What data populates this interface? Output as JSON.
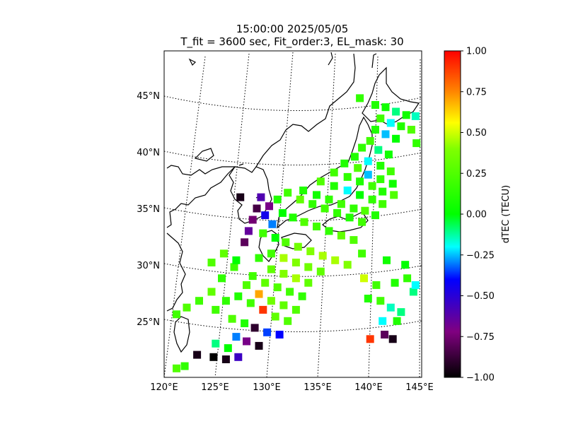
{
  "chart_data": {
    "type": "heatmap",
    "title": "15:00:00 2025/05/05",
    "subtitle": "T_fit = 3600 sec, Fit_order:3, EL_mask: 30",
    "colorbar": {
      "label": "dTEC (TECU)",
      "vmin": -1.0,
      "vmax": 1.0,
      "ticks": [
        "1.00",
        "0.75",
        "0.50",
        "0.25",
        "0.00",
        "−0.25",
        "−0.50",
        "−0.75",
        "−1.00"
      ],
      "colormap": [
        "#000000",
        "#800080",
        "#0000ff",
        "#00ffff",
        "#00ff00",
        "#ffff00",
        "#ff0000"
      ]
    },
    "lon_ticks": [
      "120°E",
      "125°E",
      "130°E",
      "135°E",
      "140°E",
      "145°E"
    ],
    "lat_ticks": [
      "45°N",
      "40°N",
      "35°N",
      "30°N",
      "25°N"
    ],
    "lon_range": [
      120,
      145
    ],
    "lat_range": [
      20,
      49
    ],
    "points": [
      [
        139.0,
        44.8,
        0.15
      ],
      [
        140.5,
        44.2,
        0.1
      ],
      [
        141.5,
        44.0,
        0.05
      ],
      [
        142.5,
        43.6,
        -0.1
      ],
      [
        143.5,
        43.3,
        0.05
      ],
      [
        144.4,
        43.2,
        -0.15
      ],
      [
        141.0,
        43.0,
        0.2
      ],
      [
        142.0,
        42.6,
        -0.2
      ],
      [
        143.0,
        42.3,
        0.1
      ],
      [
        144.0,
        42.0,
        0.25
      ],
      [
        140.5,
        42.0,
        0.1
      ],
      [
        141.5,
        41.6,
        -0.25
      ],
      [
        142.5,
        41.2,
        0.0
      ],
      [
        144.5,
        40.8,
        0.15
      ],
      [
        140.0,
        41.0,
        0.2
      ],
      [
        139.2,
        40.4,
        0.15
      ],
      [
        140.8,
        40.2,
        -0.1
      ],
      [
        141.8,
        39.8,
        0.05
      ],
      [
        138.5,
        39.6,
        0.1
      ],
      [
        139.8,
        39.2,
        -0.2
      ],
      [
        141.0,
        38.8,
        0.1
      ],
      [
        142.0,
        38.3,
        0.2
      ],
      [
        137.5,
        39.0,
        0.1
      ],
      [
        138.8,
        38.6,
        0.25
      ],
      [
        139.8,
        38.0,
        -0.25
      ],
      [
        141.0,
        37.6,
        0.15
      ],
      [
        142.2,
        37.2,
        0.05
      ],
      [
        136.5,
        38.2,
        0.2
      ],
      [
        137.8,
        37.8,
        0.15
      ],
      [
        139.0,
        37.4,
        0.1
      ],
      [
        140.2,
        37.0,
        0.2
      ],
      [
        141.2,
        36.5,
        0.1
      ],
      [
        142.3,
        36.2,
        0.25
      ],
      [
        135.2,
        37.4,
        0.25
      ],
      [
        136.5,
        37.0,
        0.1
      ],
      [
        137.8,
        36.6,
        -0.2
      ],
      [
        139.0,
        36.2,
        0.0
      ],
      [
        140.2,
        35.8,
        0.15
      ],
      [
        141.2,
        35.4,
        0.2
      ],
      [
        133.5,
        36.6,
        0.1
      ],
      [
        134.8,
        36.2,
        0.05
      ],
      [
        136.0,
        35.8,
        0.15
      ],
      [
        137.2,
        35.4,
        0.2
      ],
      [
        138.4,
        35.0,
        0.15
      ],
      [
        139.5,
        34.8,
        0.25
      ],
      [
        140.5,
        34.4,
        0.1
      ],
      [
        132.0,
        36.4,
        0.2
      ],
      [
        133.2,
        35.8,
        0.3
      ],
      [
        134.4,
        35.4,
        0.15
      ],
      [
        135.6,
        35.0,
        0.2
      ],
      [
        136.8,
        34.6,
        0.15
      ],
      [
        138.0,
        34.2,
        0.1
      ],
      [
        139.2,
        33.8,
        0.2
      ],
      [
        131.0,
        35.8,
        0.1
      ],
      [
        130.2,
        35.2,
        -0.7
      ],
      [
        131.5,
        34.6,
        0.0
      ],
      [
        132.5,
        34.2,
        0.1
      ],
      [
        133.6,
        33.8,
        0.25
      ],
      [
        134.8,
        33.4,
        0.2
      ],
      [
        136.0,
        33.0,
        0.15
      ],
      [
        137.2,
        32.6,
        0.3
      ],
      [
        138.4,
        32.2,
        0.25
      ],
      [
        129.4,
        36.0,
        -0.6
      ],
      [
        129.0,
        35.0,
        -0.85
      ],
      [
        128.6,
        34.0,
        -0.75
      ],
      [
        128.2,
        33.0,
        -0.65
      ],
      [
        127.8,
        32.0,
        -0.8
      ],
      [
        127.4,
        36.0,
        -0.95
      ],
      [
        129.8,
        34.4,
        -0.45
      ],
      [
        130.5,
        33.6,
        -0.3
      ],
      [
        129.6,
        32.8,
        0.2
      ],
      [
        130.8,
        32.4,
        0.0
      ],
      [
        131.8,
        32.0,
        0.25
      ],
      [
        133.0,
        31.6,
        0.35
      ],
      [
        134.2,
        31.2,
        0.4
      ],
      [
        135.4,
        30.8,
        0.45
      ],
      [
        136.6,
        30.4,
        0.45
      ],
      [
        137.8,
        30.0,
        0.4
      ],
      [
        139.2,
        31.0,
        0.2
      ],
      [
        130.4,
        31.0,
        0.2
      ],
      [
        131.6,
        30.6,
        0.45
      ],
      [
        132.8,
        30.2,
        0.4
      ],
      [
        134.0,
        29.8,
        0.35
      ],
      [
        135.2,
        29.4,
        0.3
      ],
      [
        129.2,
        30.6,
        0.15
      ],
      [
        130.4,
        29.6,
        0.3
      ],
      [
        131.6,
        29.2,
        0.4
      ],
      [
        132.8,
        28.8,
        0.45
      ],
      [
        134.0,
        28.4,
        0.3
      ],
      [
        128.6,
        29.0,
        0.2
      ],
      [
        129.8,
        28.4,
        0.3
      ],
      [
        131.0,
        28.0,
        0.25
      ],
      [
        132.2,
        27.6,
        0.2
      ],
      [
        133.4,
        27.2,
        0.15
      ],
      [
        128.0,
        28.2,
        0.25
      ],
      [
        129.2,
        27.4,
        0.7
      ],
      [
        130.4,
        26.8,
        0.35
      ],
      [
        131.6,
        26.4,
        0.3
      ],
      [
        132.8,
        26.0,
        0.25
      ],
      [
        127.2,
        27.2,
        0.1
      ],
      [
        128.4,
        26.6,
        0.2
      ],
      [
        129.6,
        26.0,
        0.9
      ],
      [
        130.8,
        25.4,
        0.3
      ],
      [
        132.0,
        25.0,
        0.25
      ],
      [
        126.0,
        26.8,
        0.15
      ],
      [
        125.0,
        26.0,
        0.2
      ],
      [
        126.6,
        25.2,
        0.25
      ],
      [
        127.8,
        24.8,
        0.1
      ],
      [
        128.8,
        24.4,
        -0.9
      ],
      [
        130.0,
        24.0,
        -0.35
      ],
      [
        131.2,
        23.8,
        -0.4
      ],
      [
        126.8,
        29.8,
        0.2
      ],
      [
        125.6,
        28.8,
        0.15
      ],
      [
        124.6,
        27.6,
        0.3
      ],
      [
        123.4,
        26.8,
        0.2
      ],
      [
        122.2,
        26.2,
        0.25
      ],
      [
        125.8,
        31.0,
        0.3
      ],
      [
        127.0,
        30.4,
        0.0
      ],
      [
        124.6,
        30.2,
        0.25
      ],
      [
        121.2,
        25.6,
        0.2
      ],
      [
        127.0,
        23.6,
        -0.3
      ],
      [
        128.0,
        23.2,
        -0.7
      ],
      [
        129.2,
        22.8,
        -0.95
      ],
      [
        126.2,
        22.6,
        0.0
      ],
      [
        125.0,
        23.0,
        -0.1
      ],
      [
        123.2,
        22.0,
        -0.95
      ],
      [
        124.8,
        21.8,
        -1.0
      ],
      [
        126.0,
        21.6,
        -0.95
      ],
      [
        127.2,
        21.8,
        -0.55
      ],
      [
        122.0,
        21.0,
        0.15
      ],
      [
        121.2,
        20.8,
        0.25
      ],
      [
        139.8,
        27.0,
        0.1
      ],
      [
        141.0,
        26.8,
        0.2
      ],
      [
        142.0,
        26.2,
        -0.15
      ],
      [
        143.0,
        25.8,
        -0.1
      ],
      [
        144.2,
        27.6,
        -0.1
      ],
      [
        141.2,
        25.0,
        -0.2
      ],
      [
        142.6,
        25.0,
        0.1
      ],
      [
        141.4,
        23.8,
        -0.8
      ],
      [
        142.2,
        23.4,
        -0.95
      ],
      [
        140.0,
        23.4,
        0.9
      ],
      [
        144.4,
        28.2,
        -0.2
      ],
      [
        143.6,
        28.8,
        0.15
      ],
      [
        142.4,
        28.4,
        0.1
      ],
      [
        140.6,
        28.2,
        0.2
      ],
      [
        139.4,
        28.8,
        0.5
      ],
      [
        141.6,
        30.4,
        0.05
      ],
      [
        143.4,
        30.0,
        0.0
      ]
    ]
  }
}
